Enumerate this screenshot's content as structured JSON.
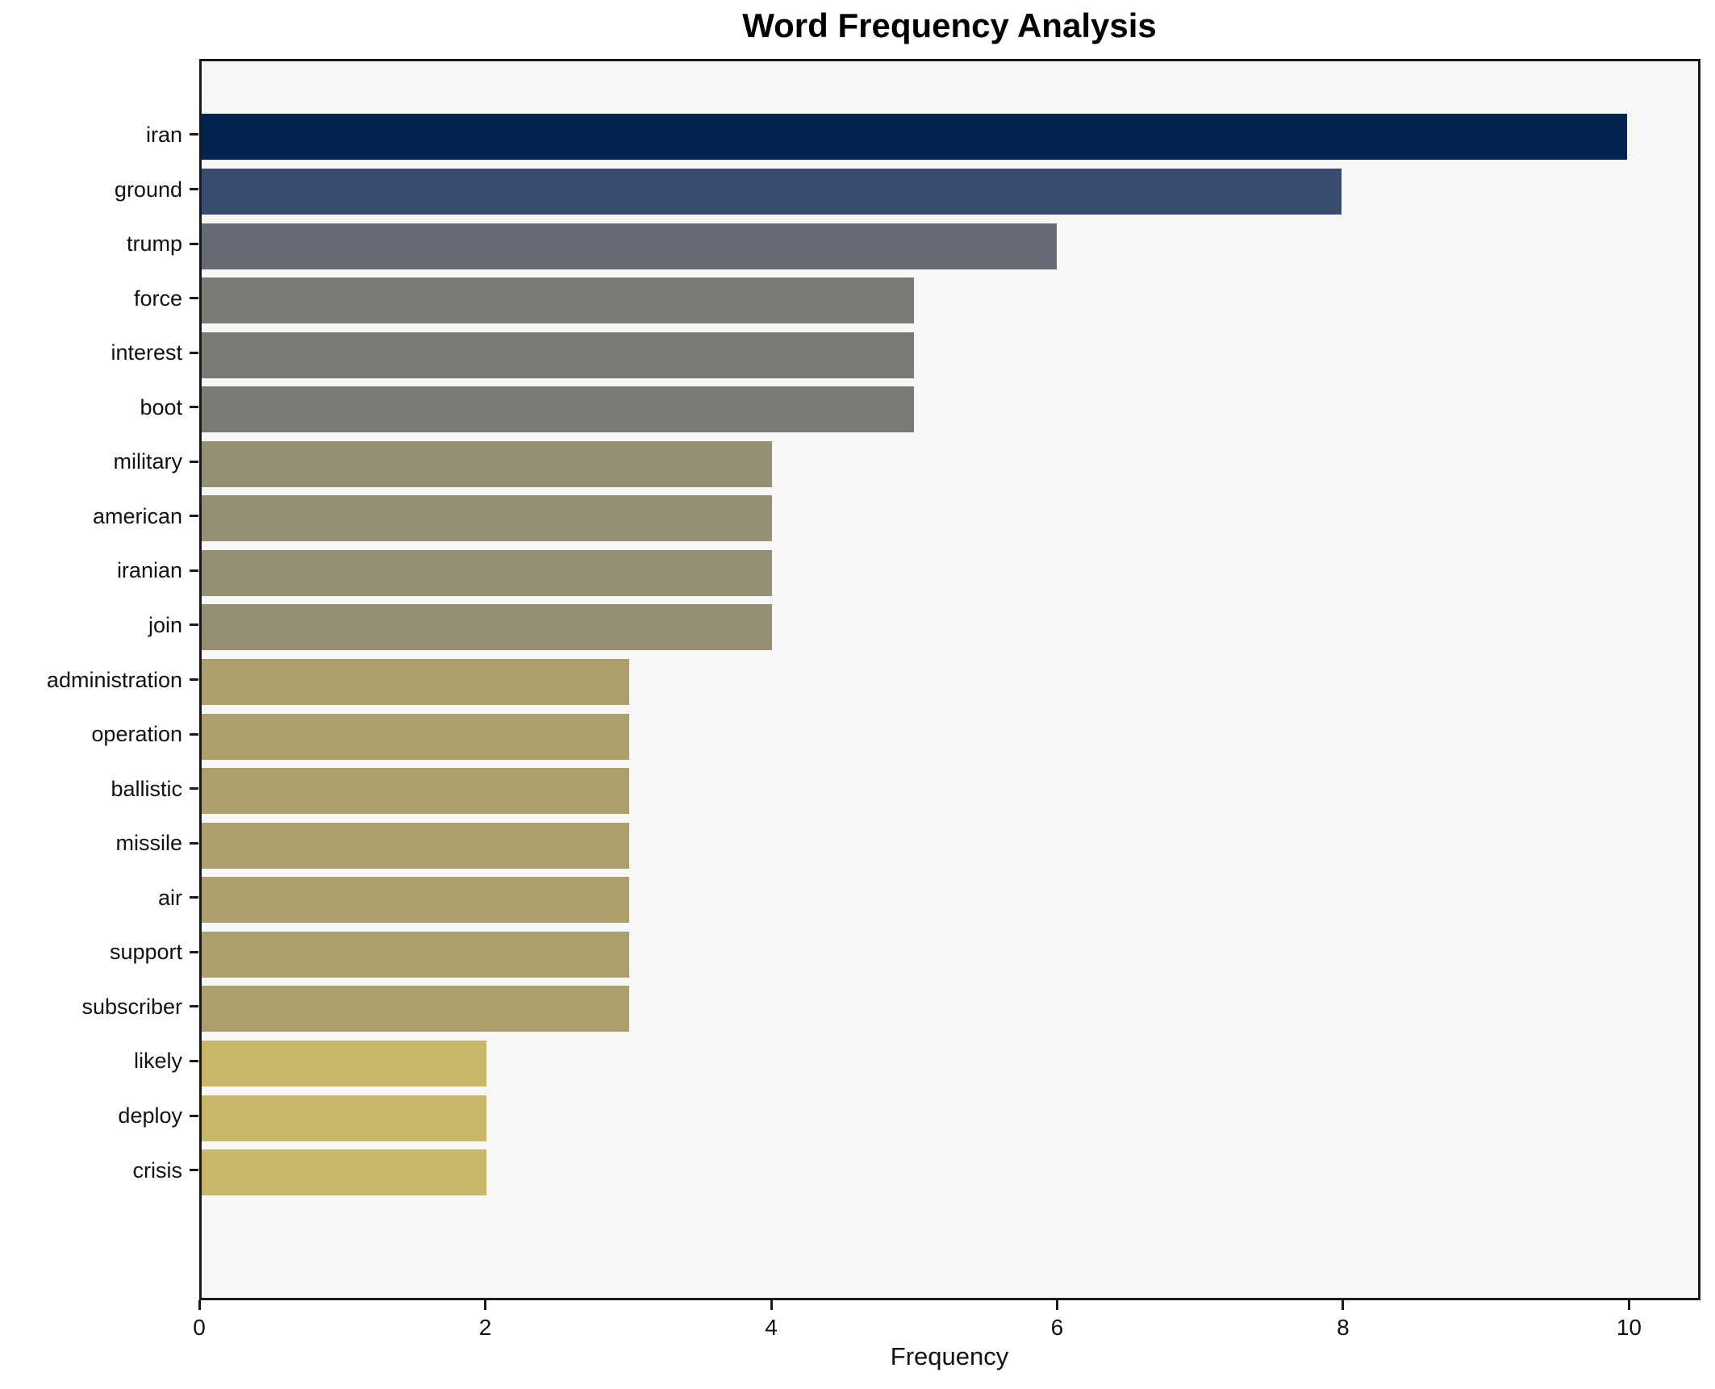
{
  "chart_data": {
    "type": "bar",
    "orientation": "horizontal",
    "title": "Word Frequency Analysis",
    "xlabel": "Frequency",
    "ylabel": "",
    "xlim": [
      0,
      10.5
    ],
    "x_ticks": [
      0,
      2,
      4,
      6,
      8,
      10
    ],
    "grid": false,
    "legend": false,
    "categories": [
      "iran",
      "ground",
      "trump",
      "force",
      "interest",
      "boot",
      "military",
      "american",
      "iranian",
      "join",
      "administration",
      "operation",
      "ballistic",
      "missile",
      "air",
      "support",
      "subscriber",
      "likely",
      "deploy",
      "crisis"
    ],
    "values": [
      10,
      8,
      6,
      5,
      5,
      5,
      4,
      4,
      4,
      4,
      3,
      3,
      3,
      3,
      3,
      3,
      3,
      2,
      2,
      2
    ],
    "bar_colors": [
      "#02234e",
      "#3a4b72",
      "#666b77",
      "#7b7a74",
      "#7b7a74",
      "#7b7a74",
      "#948f75",
      "#948f75",
      "#948f75",
      "#948f75",
      "#ab9f6d",
      "#ab9f6d",
      "#ab9f6d",
      "#ab9f6d",
      "#ab9f6d",
      "#ab9f6d",
      "#ab9f6d",
      "#c9b768",
      "#c9b768",
      "#c9b768"
    ]
  },
  "style": {
    "page_bg": "#ffffff",
    "plot_bg": "#f7f7f5",
    "axis_color": "#1a1a1a",
    "text_color": "#111111",
    "title_color": "#000000"
  }
}
